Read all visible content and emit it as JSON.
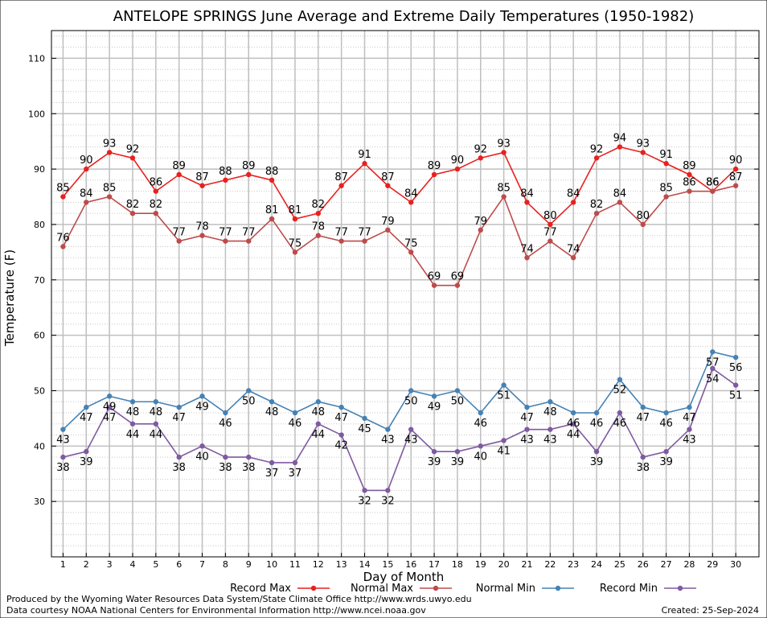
{
  "chart_data": {
    "type": "line",
    "title": "ANTELOPE SPRINGS June Average and Extreme Daily Temperatures (1950-1982)",
    "xlabel": "Day of Month",
    "ylabel": "Temperature (F)",
    "ylim": [
      20,
      115
    ],
    "yticks": [
      30,
      40,
      50,
      60,
      70,
      80,
      90,
      100,
      110
    ],
    "x": [
      1,
      2,
      3,
      4,
      5,
      6,
      7,
      8,
      9,
      10,
      11,
      12,
      13,
      14,
      15,
      16,
      17,
      18,
      19,
      20,
      21,
      22,
      23,
      24,
      25,
      26,
      27,
      28,
      29,
      30
    ],
    "grid": true,
    "series": [
      {
        "name": "Record Max",
        "color": "#e8211f",
        "label_pos": "above",
        "values": [
          85,
          90,
          93,
          92,
          86,
          89,
          87,
          88,
          89,
          88,
          81,
          82,
          87,
          91,
          87,
          84,
          89,
          90,
          92,
          93,
          84,
          80,
          84,
          92,
          94,
          93,
          91,
          89,
          86,
          90
        ]
      },
      {
        "name": "Normal Max",
        "color": "#bd4b4b",
        "label_pos": "above",
        "values": [
          76,
          84,
          85,
          82,
          82,
          77,
          78,
          77,
          77,
          81,
          75,
          78,
          77,
          77,
          79,
          75,
          69,
          69,
          79,
          85,
          74,
          77,
          74,
          82,
          84,
          80,
          85,
          86,
          86,
          87
        ]
      },
      {
        "name": "Normal Min",
        "color": "#4682b4",
        "label_pos": "below",
        "values": [
          43,
          47,
          49,
          48,
          48,
          47,
          49,
          46,
          50,
          48,
          46,
          48,
          47,
          45,
          43,
          50,
          49,
          50,
          46,
          51,
          47,
          48,
          46,
          46,
          52,
          47,
          46,
          47,
          57,
          56
        ]
      },
      {
        "name": "Record Min",
        "color": "#7f5aa0",
        "label_pos": "below",
        "values": [
          38,
          39,
          47,
          44,
          44,
          38,
          40,
          38,
          38,
          37,
          37,
          44,
          42,
          32,
          32,
          43,
          39,
          39,
          40,
          41,
          43,
          43,
          44,
          39,
          46,
          38,
          39,
          43,
          54,
          51
        ]
      }
    ]
  },
  "footer": {
    "produced_by": "Produced by the Wyoming Water Resources Data System/State Climate Office http://www.wrds.uwyo.edu",
    "data_courtesy": "Data courtesy NOAA National Centers for Environmental Information http://www.ncei.noaa.gov",
    "created": "Created: 25-Sep-2024"
  }
}
